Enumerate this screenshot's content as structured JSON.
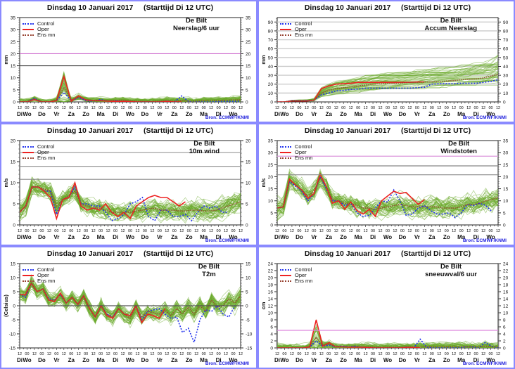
{
  "title": "Dinsdag 10 Januari 2017     (Starttijd Di 12 UTC)",
  "source": "Bron: ECMWF/KNMI",
  "station": "De Bilt",
  "legend": {
    "control": "Control",
    "oper": "Oper",
    "ensmn": "Ens mn"
  },
  "colors": {
    "control": "#2233ee",
    "oper": "#ee2222",
    "ensmn": "#994433",
    "members": "#6aaa2a",
    "border": "#8a8aff",
    "source": "#2222dd"
  },
  "x_tick_labels": [
    "12",
    "00",
    "12",
    "00",
    "12",
    "00",
    "12",
    "00",
    "12",
    "00",
    "12",
    "00",
    "12",
    "00",
    "12",
    "00",
    "12",
    "00",
    "12",
    "00",
    "12",
    "00",
    "12",
    "00",
    "12",
    "00",
    "12",
    "00",
    "12",
    "00",
    "12"
  ],
  "day_labels": [
    "Di",
    "Wo",
    "Do",
    "Vr",
    "Za",
    "Zo",
    "Ma",
    "Di",
    "Wo",
    "Do",
    "Vr",
    "Za",
    "Zo",
    "Ma",
    "Di",
    "Wo"
  ],
  "chart_data": [
    {
      "type": "line",
      "id": "neerslag",
      "title": "Dinsdag 10 Januari 2017     (Starttijd Di 12 UTC)",
      "station_label": [
        "De Bilt",
        "Neerslag/6 uur"
      ],
      "ylabel": "mm",
      "ylim": [
        0,
        35
      ],
      "yticks": [
        0,
        5,
        10,
        15,
        20,
        25,
        30,
        35
      ],
      "hlines": [
        {
          "y": 20,
          "color": "#cc66cc"
        },
        {
          "y": 15,
          "color": "#444444"
        }
      ],
      "grid_lines": [],
      "x_step_hours": 12,
      "series": [
        {
          "name": "Control",
          "values": [
            0,
            0,
            1.5,
            0,
            0,
            0.5,
            4,
            0.5,
            1.8,
            0.5,
            0.3,
            1,
            0.3,
            0.5,
            0.2,
            0.1,
            0,
            0,
            0,
            0,
            0.3,
            0,
            2.5,
            0,
            0,
            0,
            0,
            0.1,
            0.2,
            0.2,
            0.3
          ]
        },
        {
          "name": "Oper",
          "values": [
            0,
            0,
            1,
            0,
            0,
            0.5,
            10.5,
            0.3,
            2.5,
            0.8,
            0.5,
            0.5,
            0.3,
            0.2,
            0.2,
            0.1,
            0,
            0,
            0,
            0,
            0.2,
            0,
            0
          ]
        },
        {
          "name": "Ens mn",
          "values": [
            0,
            0,
            1.2,
            0,
            0,
            0.8,
            6,
            0.8,
            2,
            1,
            0.6,
            0.7,
            0.5,
            0.7,
            0.7,
            0.5,
            0.3,
            0.2,
            0.2,
            0.3,
            0.5,
            0.3,
            0.5,
            0.3,
            0.3,
            0.5,
            0.5,
            0.6,
            0.7,
            0.8,
            0.8
          ]
        }
      ],
      "members": {
        "count": 50,
        "spread": 0.9,
        "peak_spread": 2.4,
        "min": 0,
        "max": 25,
        "seed": 11
      }
    },
    {
      "type": "line",
      "id": "accum",
      "title": "Dinsdag 10 Januari 2017     (Starttijd Di 12 UTC)",
      "station_label": [
        "De Bilt",
        "Accum Neerslag"
      ],
      "ylabel": "mm",
      "ylim": [
        0,
        95
      ],
      "yticks": [
        0,
        10,
        20,
        30,
        40,
        50,
        60,
        70,
        80,
        90
      ],
      "hlines": [],
      "grid_lines": [
        10,
        20,
        30,
        40,
        50,
        60,
        70,
        80,
        90
      ],
      "x_step_hours": 12,
      "series": [
        {
          "name": "Control",
          "values": [
            0,
            0,
            1.5,
            1.5,
            1.5,
            2,
            8,
            10,
            12.5,
            13,
            14,
            14.5,
            15.5,
            15.5,
            15.5,
            15.5,
            15.5,
            15.5,
            15.5,
            16,
            16.5,
            20,
            20.5,
            20.5,
            20.5,
            21,
            21,
            21,
            22,
            23,
            25
          ]
        },
        {
          "name": "Oper",
          "values": [
            0,
            0,
            1,
            1,
            1,
            2,
            15,
            18,
            20,
            20.5,
            21,
            22,
            22,
            22,
            22,
            22,
            22,
            22,
            22,
            22.5,
            22.5
          ]
        },
        {
          "name": "Ens mn",
          "values": [
            0,
            0,
            1.2,
            1.2,
            1.2,
            2,
            10,
            13,
            15,
            16,
            17,
            18,
            19,
            20,
            20.5,
            21,
            21,
            21.5,
            22,
            22,
            22.5,
            22.5,
            23,
            23.5,
            24,
            25,
            25.5,
            26,
            27,
            29,
            31
          ]
        }
      ],
      "members": {
        "count": 50,
        "spread": 0.35,
        "min": 0,
        "max": 80,
        "seed": 23,
        "cumulative": true
      }
    },
    {
      "type": "line",
      "id": "wind10m",
      "title": "Dinsdag 10 Januari 2017     (Starttijd Di 12 UTC)",
      "station_label": [
        "De Bilt",
        "10m wind"
      ],
      "ylabel": "m/s",
      "ylim": [
        0,
        20
      ],
      "yticks": [
        0,
        5,
        10,
        15,
        20
      ],
      "hlines": [
        {
          "y": 17.2,
          "color": "#999999"
        },
        {
          "y": 13.9,
          "color": "#999999"
        },
        {
          "y": 10.8,
          "color": "#888888"
        }
      ],
      "grid_lines": [],
      "x_step_hours": 12,
      "series": [
        {
          "name": "Control",
          "values": [
            3,
            4.5,
            9,
            9,
            8,
            8,
            2.5,
            6,
            6.5,
            9,
            5,
            5,
            4.5,
            4.5,
            3,
            1,
            1.5,
            2.5,
            5,
            5.5,
            6.5,
            2,
            1,
            3.5,
            3.5,
            2,
            2,
            2.5,
            1,
            3,
            4.5,
            4,
            4.5,
            3,
            3
          ]
        },
        {
          "name": "Oper",
          "values": [
            3,
            4.5,
            9,
            9,
            8,
            6.5,
            1.5,
            6,
            6.5,
            10,
            4.5,
            3.5,
            4,
            3.5,
            5,
            3,
            2,
            3,
            1.5,
            4.5,
            5.5,
            6.5,
            7,
            6.5,
            6.5,
            5.5,
            4.5,
            5.5
          ]
        },
        {
          "name": "Ens mn",
          "values": [
            3,
            4.5,
            9,
            9,
            8.5,
            8,
            4.5,
            6,
            7,
            8,
            5,
            4.5,
            4,
            4,
            3.5,
            3,
            3,
            3,
            3,
            3.3,
            3.5,
            3.8,
            4,
            3.5,
            3.5,
            3.5,
            3.3,
            3.3,
            3.5,
            3.5,
            3.3,
            3.3,
            3.5,
            4,
            4.5,
            5,
            5.5
          ]
        }
      ],
      "members": {
        "count": 50,
        "spread": 1.5,
        "min": 0,
        "max": 14,
        "seed": 37
      }
    },
    {
      "type": "line",
      "id": "windstoten",
      "title": "Dinsdag 10 Januari 2017     (Starttijd Di 12 UTC)",
      "station_label": [
        "De Bilt",
        "Windstoten"
      ],
      "ylabel": "m/s",
      "ylim": [
        0,
        35
      ],
      "yticks": [
        0,
        5,
        10,
        15,
        20,
        25,
        30,
        35
      ],
      "hlines": [
        {
          "y": 28.5,
          "color": "#dd99dd"
        },
        {
          "y": 24.5,
          "color": "#888888"
        },
        {
          "y": 20.8,
          "color": "#888888"
        }
      ],
      "grid_lines": [],
      "x_step_hours": 12,
      "series": [
        {
          "name": "Control",
          "values": [
            7,
            7.5,
            18,
            16,
            14,
            10,
            13,
            20,
            15,
            10,
            10,
            8,
            9,
            5,
            3.5,
            4,
            7,
            10,
            9.5,
            14.5,
            10,
            4,
            4.5,
            7,
            8,
            6,
            4.5,
            4.5,
            5,
            3,
            5,
            8.5,
            8,
            9,
            8,
            5.5
          ]
        },
        {
          "name": "Oper",
          "values": [
            7,
            7.5,
            19,
            16.5,
            14.5,
            11,
            13,
            21,
            16,
            9,
            10,
            6.5,
            9.5,
            6,
            4.5,
            6.5,
            3.5,
            10,
            12,
            14,
            13,
            13.5,
            11,
            8.5,
            10.5
          ]
        },
        {
          "name": "Ens mn",
          "values": [
            7,
            7.5,
            18.5,
            16.5,
            14.5,
            12,
            14,
            19.5,
            16,
            10.5,
            10,
            9,
            9,
            8,
            7,
            7,
            6.5,
            7,
            7.5,
            8,
            8.5,
            8,
            7.5,
            7.5,
            7.5,
            7.5,
            7.5,
            7,
            7,
            7,
            7.5,
            8.5,
            8.5,
            9,
            10,
            10.5,
            11.5
          ]
        }
      ],
      "members": {
        "count": 50,
        "spread": 2.8,
        "min": 1,
        "max": 29,
        "seed": 53
      }
    },
    {
      "type": "line",
      "id": "t2m",
      "title": "Dinsdag 10 Januari 2017     (Starttijd Di 12 UTC)",
      "station_label": [
        "De Bilt",
        "T2m"
      ],
      "ylabel": "(Celsius)",
      "ylim": [
        -15,
        15
      ],
      "yticks": [
        -15,
        -10,
        -5,
        0,
        5,
        10,
        15
      ],
      "hlines": [
        {
          "y": 0,
          "color": "#555555"
        }
      ],
      "grid_lines": [],
      "x_step_hours": 12,
      "series": [
        {
          "name": "Control",
          "values": [
            4,
            3,
            8,
            5,
            6,
            2.5,
            2,
            4,
            1,
            3,
            0.5,
            3.5,
            -1,
            -4,
            0,
            -3,
            -4,
            -1,
            -3,
            -3.5,
            0,
            -5,
            -2,
            -1.5,
            -1,
            -3,
            -4.5,
            -4,
            -9.5,
            -8,
            -13,
            -5,
            -1.5,
            -2,
            0,
            -3,
            -4,
            0
          ]
        },
        {
          "name": "Oper",
          "values": [
            4,
            4,
            8,
            5,
            6,
            2,
            1.5,
            4.5,
            1,
            3,
            0.5,
            3.5,
            -1,
            -4,
            0,
            -3.5,
            -4.5,
            -1,
            -3,
            -3.5,
            0,
            -6,
            -3,
            -3.5,
            -4.5,
            -1
          ]
        },
        {
          "name": "Ens mn",
          "values": [
            4,
            3.5,
            8,
            5,
            6,
            2,
            2,
            4,
            1,
            3,
            0.5,
            3.5,
            -1,
            -4,
            0,
            -3,
            -4,
            -1,
            -3,
            -4.5,
            -0.5,
            -4,
            -2,
            -2.5,
            -3,
            -1.5,
            -3.5,
            -1,
            -3,
            -0.5,
            -3,
            0,
            -2,
            2,
            -0.5,
            0,
            2.5,
            1,
            3.5
          ]
        }
      ],
      "members": {
        "count": 50,
        "spread": 1.9,
        "min": -14.5,
        "max": 13,
        "seed": 71
      }
    },
    {
      "type": "line",
      "id": "sneeuw",
      "title": "Dinsdag 10 Januari 2017     (Starttijd Di 12 UTC)",
      "station_label": [
        "De Bilt",
        "sneeuwval/6 uur"
      ],
      "ylabel": "cm",
      "ylim": [
        0,
        24
      ],
      "yticks": [
        0,
        2,
        4,
        6,
        8,
        10,
        12,
        14,
        16,
        18,
        20,
        22,
        24
      ],
      "hlines": [
        {
          "y": 5,
          "color": "#dd88dd"
        }
      ],
      "grid_lines": [],
      "x_step_hours": 12,
      "series": [
        {
          "name": "Control",
          "values": [
            0,
            0,
            0,
            0,
            0,
            0.3,
            2,
            0.5,
            0.8,
            0.3,
            0.5,
            0.3,
            0.5,
            0.2,
            0.1,
            0,
            0,
            0,
            0,
            0,
            0.3,
            0,
            2.5,
            0.2,
            0,
            0,
            0,
            0,
            0,
            0.3,
            0.3,
            0,
            1.5,
            0.5,
            0
          ]
        },
        {
          "name": "Oper",
          "values": [
            0,
            0,
            0,
            0,
            0,
            0.3,
            8,
            0.5,
            1.5,
            0.3,
            0.3,
            0.2,
            0.2,
            0.2,
            0.1,
            0,
            0,
            0,
            0,
            0,
            0.2,
            0.1,
            0
          ]
        },
        {
          "name": "Ens mn",
          "values": [
            0,
            0,
            0,
            0,
            0,
            0.5,
            3,
            0.8,
            1,
            0.4,
            0.3,
            0.3,
            0.3,
            0.3,
            0.3,
            0.2,
            0.2,
            0.2,
            0.2,
            0.2,
            0.3,
            0.3,
            0.3,
            0.3,
            0.3,
            0.3,
            0.3,
            0.3,
            0.3,
            0.3,
            0.3,
            0.3,
            0.5,
            0.3,
            0.3
          ]
        }
      ],
      "members": {
        "count": 50,
        "spread": 0.8,
        "peak_spread": 3.5,
        "min": 0,
        "max": 22,
        "seed": 89
      }
    }
  ]
}
